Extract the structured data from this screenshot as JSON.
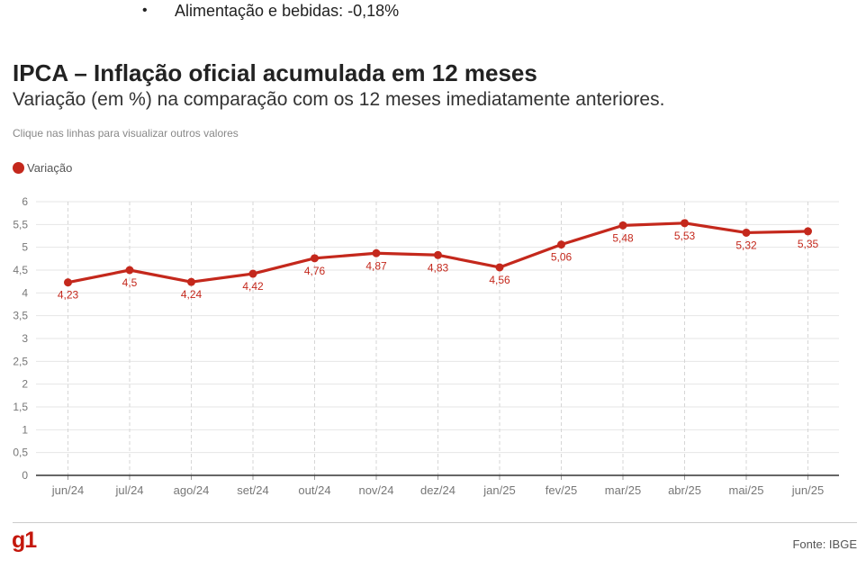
{
  "bullet": {
    "symbol": "•",
    "text": "Alimentação e bebidas: -0,18%"
  },
  "header": {
    "title": "IPCA – Inflação oficial acumulada em 12 meses",
    "subtitle": "Variação (em %) na comparação com os 12 meses imediatamente anteriores.",
    "hint": "Clique nas linhas para visualizar outros valores"
  },
  "footer": {
    "logo": "g1",
    "source": "Fonte: IBGE"
  },
  "colors": {
    "series": "#c4281c",
    "logo": "#c4170c",
    "grid": "#e6e6e6",
    "axis": "#333333"
  },
  "chart_data": {
    "type": "line",
    "title": "IPCA – Inflação oficial acumulada em 12 meses",
    "subtitle": "Variação (em %) na comparação com os 12 meses imediatamente anteriores.",
    "xlabel": "",
    "ylabel": "",
    "ylim": [
      0,
      6
    ],
    "yticks": [
      "0",
      "0,5",
      "1",
      "1,5",
      "2",
      "2,5",
      "3",
      "3,5",
      "4",
      "4,5",
      "5",
      "5,5",
      "6"
    ],
    "grid": true,
    "legend_position": "top-left",
    "categories": [
      "jun/24",
      "jul/24",
      "ago/24",
      "set/24",
      "out/24",
      "nov/24",
      "dez/24",
      "jan/25",
      "fev/25",
      "mar/25",
      "abr/25",
      "mai/25",
      "jun/25"
    ],
    "series": [
      {
        "name": "Variação",
        "values": [
          4.23,
          4.5,
          4.24,
          4.42,
          4.76,
          4.87,
          4.83,
          4.56,
          5.06,
          5.48,
          5.53,
          5.32,
          5.35
        ],
        "labels": [
          "4,23",
          "4,5",
          "4,24",
          "4,42",
          "4,76",
          "4,87",
          "4,83",
          "4,56",
          "5,06",
          "5,48",
          "5,53",
          "5,32",
          "5,35"
        ]
      }
    ]
  }
}
